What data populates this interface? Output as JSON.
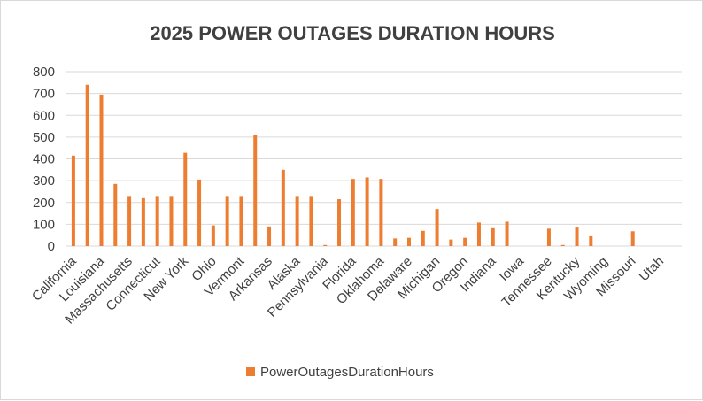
{
  "chart_data": {
    "type": "bar",
    "title": "2025 POWER OUTAGES DURATION HOURS",
    "xlabel": "",
    "ylabel": "",
    "ylim": [
      0,
      800
    ],
    "yticks": [
      "0",
      "100",
      "200",
      "300",
      "400",
      "500",
      "600",
      "700",
      "800"
    ],
    "grid": true,
    "legend_position": "bottom",
    "bar_color": "#ED7D31",
    "categories": [
      "California",
      "",
      "Louisiana",
      "",
      "Massachusetts",
      "",
      "Connecticut",
      "",
      "New York",
      "",
      "Ohio",
      "",
      "Vermont",
      "",
      "Arkansas",
      "",
      "Alaska",
      "",
      "Pennsylvania",
      "",
      "Florida",
      "",
      "Oklahoma",
      "",
      "Delaware",
      "",
      "Michigan",
      "",
      "Oregon",
      "",
      "Indiana",
      "",
      "Iowa",
      "",
      "Tennessee",
      "",
      "Kentucky",
      "",
      "Wyoming",
      "",
      "Missouri",
      "",
      "Utah",
      ""
    ],
    "series": [
      {
        "name": "PowerOutagesDurationHours",
        "values": [
          415,
          740,
          695,
          285,
          230,
          220,
          230,
          230,
          428,
          305,
          95,
          230,
          230,
          508,
          90,
          350,
          230,
          230,
          5,
          215,
          308,
          315,
          308,
          35,
          38,
          70,
          170,
          30,
          38,
          108,
          82,
          112,
          0,
          0,
          80,
          5,
          85,
          45,
          0,
          0,
          68,
          0,
          0,
          0
        ]
      }
    ]
  }
}
